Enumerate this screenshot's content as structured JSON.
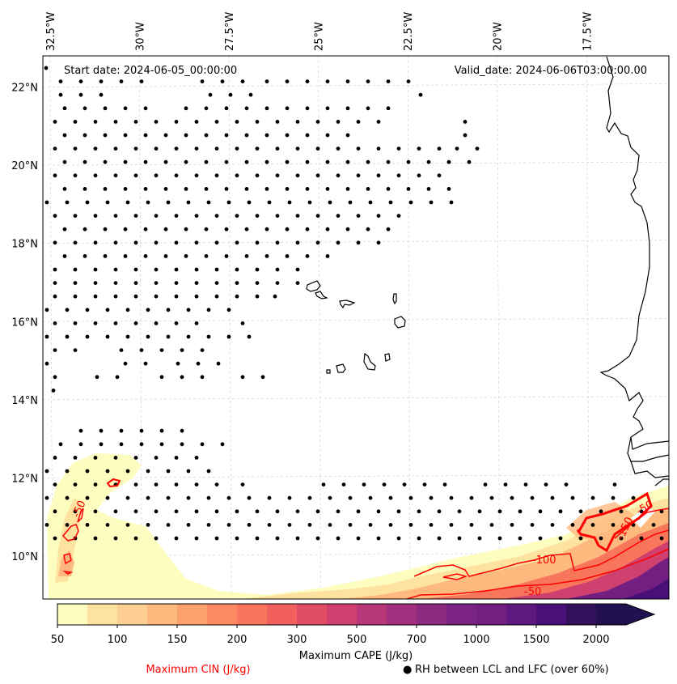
{
  "figure": {
    "start_date_label": "Start date: 2024-06-05_00:00:00",
    "valid_date_label": "Valid_date: 2024-06-06T03:00:00.00"
  },
  "map": {
    "lon_range": [
      -32.7,
      -15.2
    ],
    "lat_range": [
      8.9,
      22.8
    ],
    "lon_ticks": [
      {
        "value": -32.5,
        "label": "32.5°W"
      },
      {
        "value": -30.0,
        "label": "30°W"
      },
      {
        "value": -27.5,
        "label": "27.5°W"
      },
      {
        "value": -25.0,
        "label": "25°W"
      },
      {
        "value": -22.5,
        "label": "22.5°W"
      },
      {
        "value": -20.0,
        "label": "20°W"
      },
      {
        "value": -17.5,
        "label": "17.5°W"
      }
    ],
    "lat_ticks": [
      {
        "value": 22,
        "label": "22°N"
      },
      {
        "value": 20,
        "label": "20°N"
      },
      {
        "value": 18,
        "label": "18°N"
      },
      {
        "value": 16,
        "label": "16°N"
      },
      {
        "value": 14,
        "label": "14°N"
      },
      {
        "value": 12,
        "label": "12°N"
      },
      {
        "value": 10,
        "label": "10°N"
      }
    ],
    "grid": true
  },
  "colorbar": {
    "label": "Maximum CAPE (J/kg)",
    "levels": [
      50,
      75,
      100,
      125,
      150,
      175,
      200,
      250,
      300,
      400,
      500,
      600,
      700,
      850,
      1000,
      1250,
      1500,
      1750,
      2000
    ],
    "tick_labels": [
      "50",
      "100",
      "150",
      "200",
      "300",
      "500",
      "700",
      "1000",
      "1500",
      "2000"
    ],
    "colors": [
      "#fcfdbf",
      "#fde2a0",
      "#fecf92",
      "#feb97f",
      "#fea26d",
      "#fc8961",
      "#f8765c",
      "#f1605d",
      "#e24d66",
      "#cf406f",
      "#b73779",
      "#a3307e",
      "#8c2981",
      "#7b2382",
      "#721f81",
      "#5f187f",
      "#4a1079",
      "#32105c",
      "#221150"
    ],
    "extend": "max"
  },
  "legend": {
    "cin_label": "Maximum CIN (J/kg)",
    "cin_color": "#ff0000",
    "rh_label": "RH between LCL and LFC (over 60%)",
    "rh_marker": "●"
  },
  "chart_data": {
    "type": "heatmap",
    "title": "",
    "xlabel": "Longitude",
    "ylabel": "Latitude",
    "x_ticks": [
      "32.5°W",
      "30°W",
      "27.5°W",
      "25°W",
      "22.5°W",
      "20°W",
      "17.5°W"
    ],
    "y_ticks": [
      "22°N",
      "20°N",
      "18°N",
      "16°N",
      "14°N",
      "12°N",
      "10°N"
    ],
    "fields": [
      {
        "name": "Maximum CAPE (J/kg)",
        "kind": "filled-contour",
        "levels": [
          50,
          75,
          100,
          125,
          150,
          175,
          200,
          250,
          300,
          400,
          500,
          600,
          700,
          850,
          1000,
          1250,
          1500,
          1750,
          2000
        ],
        "note": "Values highest (>2000) near SE corner ~9-10°N, 15-17°W; weak (50-200) band along ~11-12.5°N 30-32°W and southern edge"
      },
      {
        "name": "Maximum CIN (J/kg)",
        "kind": "contour",
        "color": "#ff0000",
        "contour_labels": [
          "-50",
          "-100",
          "-150",
          "-50"
        ]
      },
      {
        "name": "RH between LCL and LFC (over 60%)",
        "kind": "stipple",
        "marker": "●"
      }
    ],
    "annotations": [
      "Start date: 2024-06-05_00:00:00",
      "Valid_date: 2024-06-06T03:00:00.00"
    ]
  }
}
